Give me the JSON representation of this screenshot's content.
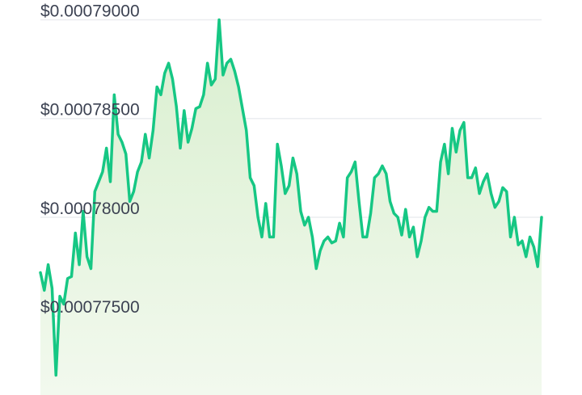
{
  "chart_data": {
    "type": "area",
    "title": "",
    "xlabel": "",
    "ylabel": "",
    "ylim": [
      0.000771,
      0.000791
    ],
    "grid": true,
    "y_ticks": [
      {
        "value": 0.00079,
        "label": "$0.00079000"
      },
      {
        "value": 0.000785,
        "label": "$0.00078500"
      },
      {
        "value": 0.00078,
        "label": "$0.00078000"
      },
      {
        "value": 0.000775,
        "label": "$0.00077500"
      }
    ],
    "colors": {
      "line": "#16c784",
      "fill_top": "#d9efcf",
      "fill_bottom": "#f2f9ee"
    },
    "series": [
      {
        "values": [
          0.0007772,
          0.0007763,
          0.0007776,
          0.0007764,
          0.000772,
          0.000776,
          0.0007756,
          0.0007769,
          0.000777,
          0.0007792,
          0.0007776,
          0.0007803,
          0.000778,
          0.0007774,
          0.0007813,
          0.0007818,
          0.0007823,
          0.0007835,
          0.0007818,
          0.0007862,
          0.0007842,
          0.0007838,
          0.0007832,
          0.0007808,
          0.0007813,
          0.0007823,
          0.0007828,
          0.0007842,
          0.000783,
          0.0007844,
          0.0007866,
          0.0007862,
          0.0007873,
          0.0007878,
          0.000787,
          0.0007856,
          0.0007835,
          0.0007854,
          0.0007838,
          0.0007845,
          0.0007855,
          0.0007856,
          0.0007862,
          0.0007878,
          0.0007867,
          0.000787,
          0.00079,
          0.0007872,
          0.0007878,
          0.000788,
          0.0007874,
          0.0007866,
          0.0007855,
          0.0007844,
          0.000782,
          0.0007816,
          0.00078,
          0.000779,
          0.0007807,
          0.000779,
          0.000779,
          0.0007837,
          0.0007826,
          0.0007812,
          0.0007816,
          0.000783,
          0.0007822,
          0.0007803,
          0.0007796,
          0.00078,
          0.000779,
          0.0007774,
          0.0007783,
          0.0007788,
          0.000779,
          0.0007787,
          0.0007788,
          0.0007797,
          0.000779,
          0.000782,
          0.0007823,
          0.0007828,
          0.0007808,
          0.000779,
          0.000779,
          0.0007802,
          0.000782,
          0.0007822,
          0.0007826,
          0.0007822,
          0.0007808,
          0.0007802,
          0.00078,
          0.0007791,
          0.0007804,
          0.000779,
          0.0007795,
          0.000778,
          0.0007788,
          0.00078,
          0.0007805,
          0.0007803,
          0.0007803,
          0.0007828,
          0.0007837,
          0.0007822,
          0.0007845,
          0.0007833,
          0.0007844,
          0.0007848,
          0.000782,
          0.000782,
          0.0007825,
          0.0007812,
          0.0007818,
          0.0007822,
          0.0007812,
          0.0007805,
          0.0007808,
          0.0007815,
          0.0007813,
          0.000779,
          0.00078,
          0.0007786,
          0.0007788,
          0.000778,
          0.000779,
          0.0007785,
          0.0007775,
          0.00078
        ]
      }
    ]
  }
}
